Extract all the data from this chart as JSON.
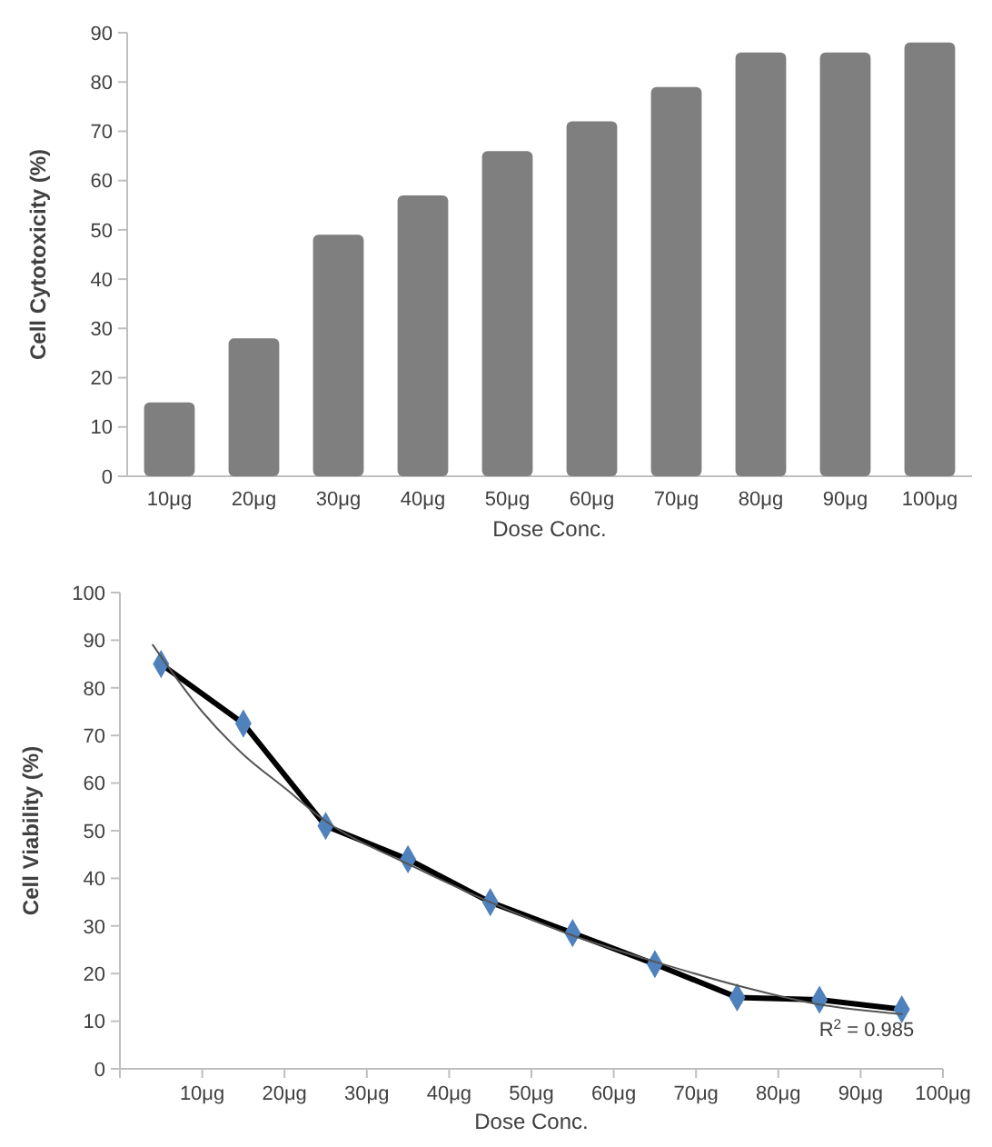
{
  "chart_data": [
    {
      "type": "bar",
      "xlabel": "Dose Conc.",
      "ylabel": "Cell Cytotoxicity (%)",
      "categories": [
        "10μg",
        "20μg",
        "30μg",
        "40μg",
        "50μg",
        "60μg",
        "70μg",
        "80μg",
        "90μg",
        "100μg"
      ],
      "values": [
        15,
        28,
        49,
        57,
        66,
        72,
        79,
        86,
        86,
        88
      ],
      "color": "#7f7f7f",
      "ylim": [
        0,
        90
      ],
      "yticks": [
        0,
        10,
        20,
        30,
        40,
        50,
        60,
        70,
        80,
        90
      ],
      "grid": false
    },
    {
      "type": "line",
      "xlabel": "Dose Conc.",
      "ylabel": "Cell Viability (%)",
      "xlim": [
        0,
        100
      ],
      "xticks": [
        {
          "value": 0,
          "label": null
        },
        {
          "value": 10,
          "label": "10μg"
        },
        {
          "value": 20,
          "label": "20μg"
        },
        {
          "value": 30,
          "label": "30μg"
        },
        {
          "value": 40,
          "label": "40μg"
        },
        {
          "value": 50,
          "label": "50μg"
        },
        {
          "value": 60,
          "label": "60μg"
        },
        {
          "value": 70,
          "label": "70μg"
        },
        {
          "value": 80,
          "label": "80μg"
        },
        {
          "value": 90,
          "label": "90μg"
        },
        {
          "value": 100,
          "label": "100μg"
        }
      ],
      "ylim": [
        0,
        100
      ],
      "yticks": [
        0,
        10,
        20,
        30,
        40,
        50,
        60,
        70,
        80,
        90,
        100
      ],
      "grid": false,
      "series": [
        {
          "type": "line",
          "color": "#000000",
          "marker": "none",
          "x": [
            5,
            15,
            25,
            35,
            45,
            55,
            65,
            75,
            85,
            95
          ],
          "values": [
            85,
            72.5,
            51,
            44,
            35,
            28.5,
            22,
            15,
            14.5,
            12.5
          ]
        },
        {
          "type": "scatter",
          "color": "#4f81bd",
          "marker": "diamond",
          "x": [
            5,
            15,
            25,
            35,
            45,
            55,
            65,
            75,
            85,
            95
          ],
          "values": [
            85,
            72.5,
            51,
            44,
            35,
            28.5,
            22,
            15,
            14.5,
            12.5
          ]
        },
        {
          "type": "line",
          "color": "#555555",
          "marker": "none",
          "x": [
            4,
            10,
            15,
            20,
            25,
            35,
            45,
            55,
            65,
            75,
            85,
            95
          ],
          "values": [
            89,
            75,
            66,
            59,
            52,
            43,
            35,
            28,
            22.5,
            17.5,
            13.5,
            11.5
          ]
        }
      ],
      "annotations": [
        "R$^{2}$ = 0.985"
      ]
    }
  ]
}
